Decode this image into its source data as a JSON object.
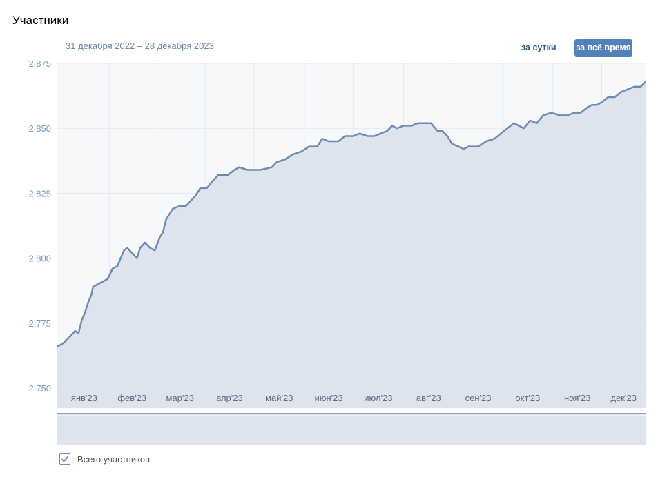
{
  "header": {
    "title": "Участники",
    "date_range": "31 декабря 2022 – 28 декабря 2023",
    "buttons": {
      "day": "за сутки",
      "all_time": "за всё время"
    }
  },
  "legend": {
    "label": "Всего участников",
    "checked": true
  },
  "colors": {
    "line": "#6f8ab0",
    "fill": "#dde4ed",
    "grid": "#e3e8ee",
    "tick": "#7d99bd",
    "month": "#5a6a80",
    "accent": "#5181b8"
  },
  "chart_data": {
    "type": "area",
    "title": "Участники",
    "xlabel": "",
    "ylabel": "",
    "ylim": [
      2750,
      2875
    ],
    "y_ticks": [
      2750,
      2775,
      2800,
      2825,
      2850,
      2875
    ],
    "y_tick_labels": [
      "2 750",
      "2 775",
      "2 800",
      "2 825",
      "2 850",
      "2 875"
    ],
    "x_range": [
      "2022-12-31",
      "2023-12-28"
    ],
    "month_labels": [
      "янв'23",
      "фев'23",
      "мар'23",
      "апр'23",
      "май'23",
      "июн'23",
      "июл'23",
      "авг'23",
      "сен'23",
      "окт'23",
      "ноя'23",
      "дек'23"
    ],
    "grid": true,
    "series": [
      {
        "name": "Всего участников",
        "points": [
          [
            "2022-12-31",
            2766
          ],
          [
            "2023-01-03",
            2767
          ],
          [
            "2023-01-05",
            2768
          ],
          [
            "2023-01-08",
            2770
          ],
          [
            "2023-01-11",
            2772
          ],
          [
            "2023-01-13",
            2771
          ],
          [
            "2023-01-15",
            2776
          ],
          [
            "2023-01-17",
            2779
          ],
          [
            "2023-01-19",
            2783
          ],
          [
            "2023-01-21",
            2786
          ],
          [
            "2023-01-22",
            2789
          ],
          [
            "2023-01-25",
            2790
          ],
          [
            "2023-01-28",
            2791
          ],
          [
            "2023-01-31",
            2792
          ],
          [
            "2023-02-03",
            2796
          ],
          [
            "2023-02-06",
            2797
          ],
          [
            "2023-02-10",
            2803
          ],
          [
            "2023-02-12",
            2804
          ],
          [
            "2023-02-15",
            2802
          ],
          [
            "2023-02-18",
            2800
          ],
          [
            "2023-02-20",
            2804
          ],
          [
            "2023-02-23",
            2806
          ],
          [
            "2023-02-26",
            2804
          ],
          [
            "2023-03-01",
            2803
          ],
          [
            "2023-03-04",
            2808
          ],
          [
            "2023-03-06",
            2810
          ],
          [
            "2023-03-08",
            2815
          ],
          [
            "2023-03-12",
            2819
          ],
          [
            "2023-03-16",
            2820
          ],
          [
            "2023-03-20",
            2820
          ],
          [
            "2023-03-23",
            2822
          ],
          [
            "2023-03-26",
            2824
          ],
          [
            "2023-03-29",
            2827
          ],
          [
            "2023-04-02",
            2827
          ],
          [
            "2023-04-06",
            2830
          ],
          [
            "2023-04-09",
            2832
          ],
          [
            "2023-04-15",
            2832
          ],
          [
            "2023-04-19",
            2834
          ],
          [
            "2023-04-22",
            2835
          ],
          [
            "2023-04-27",
            2834
          ],
          [
            "2023-05-05",
            2834
          ],
          [
            "2023-05-12",
            2835
          ],
          [
            "2023-05-15",
            2837
          ],
          [
            "2023-05-20",
            2838
          ],
          [
            "2023-05-25",
            2840
          ],
          [
            "2023-05-30",
            2841
          ],
          [
            "2023-06-04",
            2843
          ],
          [
            "2023-06-09",
            2843
          ],
          [
            "2023-06-12",
            2846
          ],
          [
            "2023-06-16",
            2845
          ],
          [
            "2023-06-22",
            2845
          ],
          [
            "2023-06-26",
            2847
          ],
          [
            "2023-07-01",
            2847
          ],
          [
            "2023-07-05",
            2848
          ],
          [
            "2023-07-10",
            2847
          ],
          [
            "2023-07-14",
            2847
          ],
          [
            "2023-07-18",
            2848
          ],
          [
            "2023-07-22",
            2849
          ],
          [
            "2023-07-25",
            2851
          ],
          [
            "2023-07-28",
            2850
          ],
          [
            "2023-08-01",
            2851
          ],
          [
            "2023-08-06",
            2851
          ],
          [
            "2023-08-10",
            2852
          ],
          [
            "2023-08-18",
            2852
          ],
          [
            "2023-08-22",
            2849
          ],
          [
            "2023-08-25",
            2849
          ],
          [
            "2023-08-28",
            2847
          ],
          [
            "2023-08-31",
            2844
          ],
          [
            "2023-09-04",
            2843
          ],
          [
            "2023-09-07",
            2842
          ],
          [
            "2023-09-10",
            2843
          ],
          [
            "2023-09-16",
            2843
          ],
          [
            "2023-09-21",
            2845
          ],
          [
            "2023-09-26",
            2846
          ],
          [
            "2023-09-30",
            2848
          ],
          [
            "2023-10-04",
            2850
          ],
          [
            "2023-10-08",
            2852
          ],
          [
            "2023-10-11",
            2851
          ],
          [
            "2023-10-14",
            2850
          ],
          [
            "2023-10-18",
            2853
          ],
          [
            "2023-10-22",
            2852
          ],
          [
            "2023-10-26",
            2855
          ],
          [
            "2023-10-31",
            2856
          ],
          [
            "2023-11-05",
            2855
          ],
          [
            "2023-11-10",
            2855
          ],
          [
            "2023-11-14",
            2856
          ],
          [
            "2023-11-18",
            2856
          ],
          [
            "2023-11-22",
            2858
          ],
          [
            "2023-11-25",
            2859
          ],
          [
            "2023-11-28",
            2859
          ],
          [
            "2023-12-01",
            2860
          ],
          [
            "2023-12-05",
            2862
          ],
          [
            "2023-12-09",
            2862
          ],
          [
            "2023-12-13",
            2864
          ],
          [
            "2023-12-17",
            2865
          ],
          [
            "2023-12-21",
            2866
          ],
          [
            "2023-12-25",
            2866
          ],
          [
            "2023-12-28",
            2868
          ]
        ]
      }
    ]
  }
}
